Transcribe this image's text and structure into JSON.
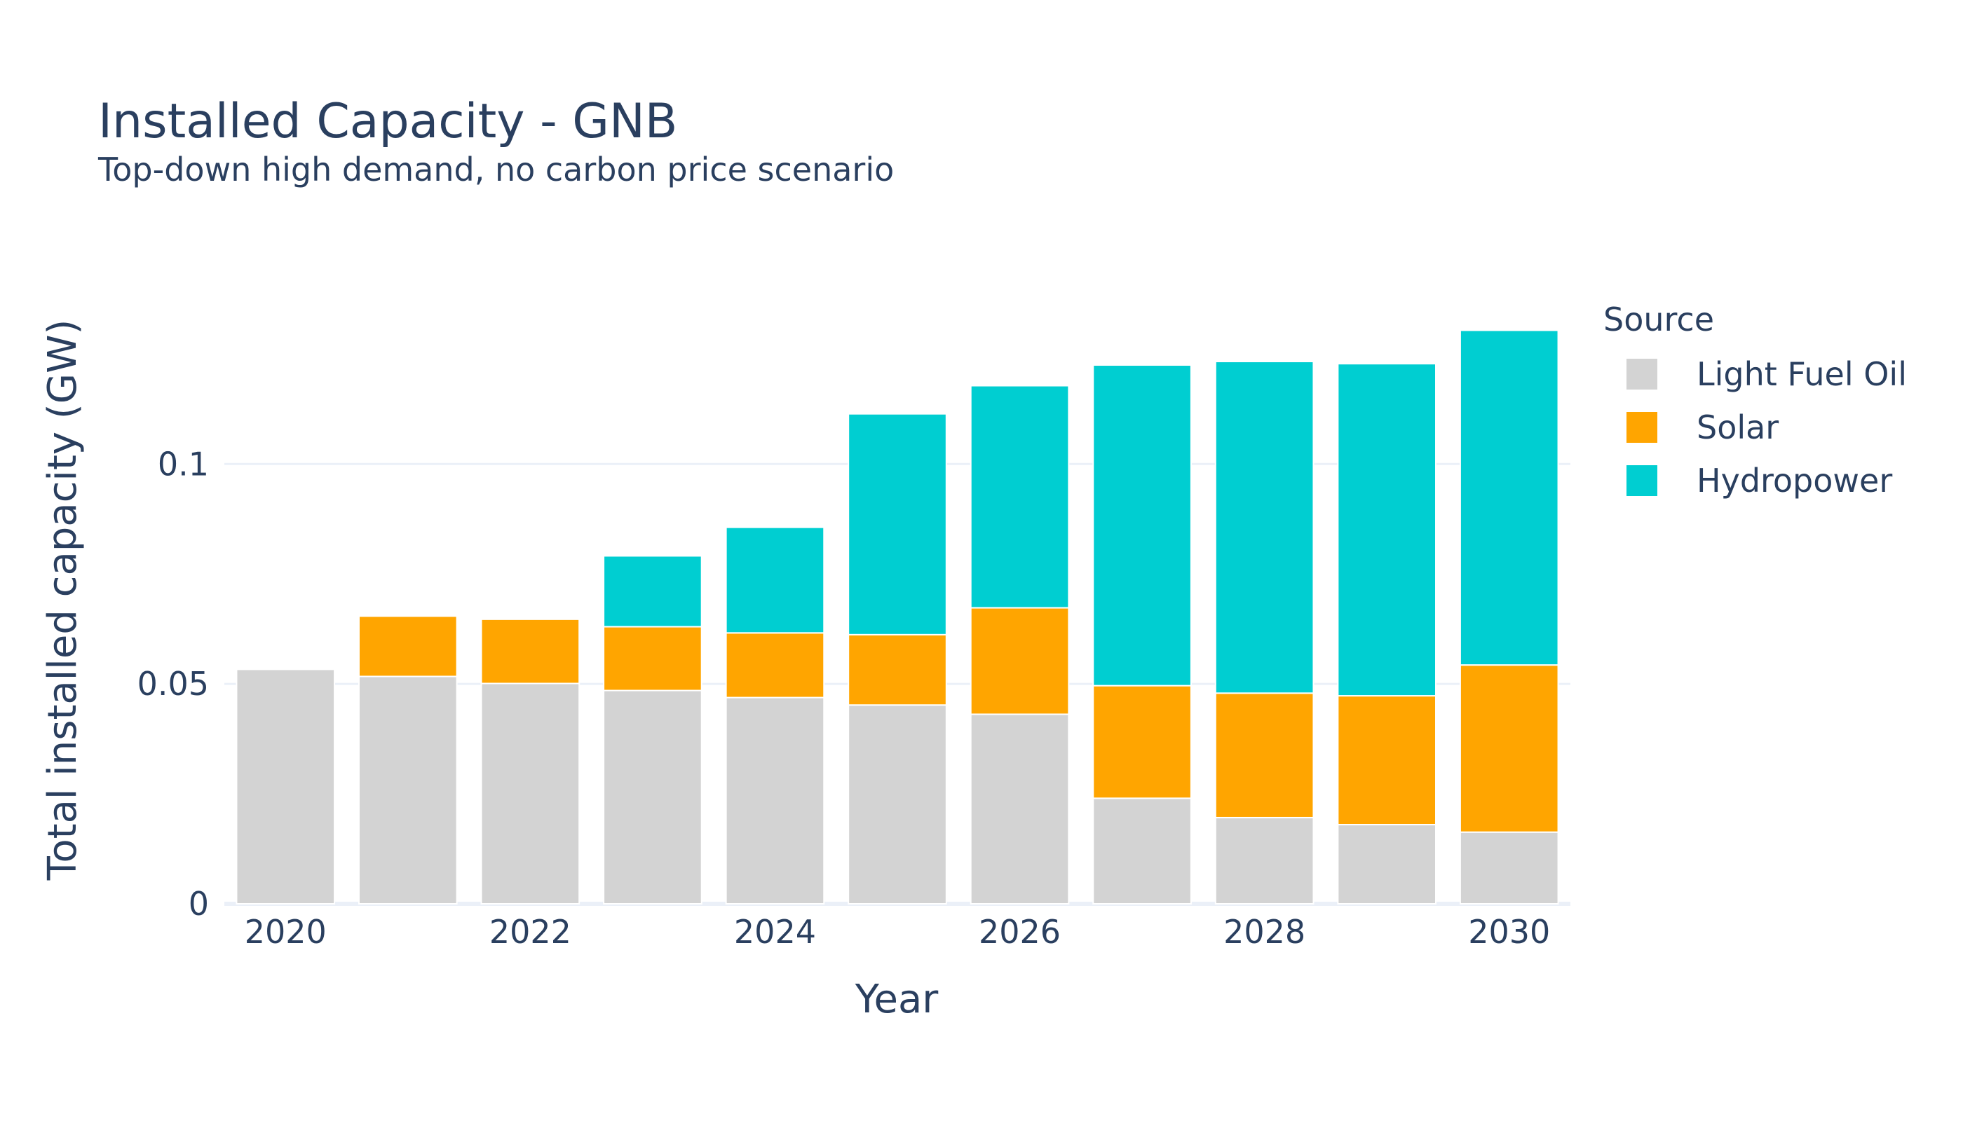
{
  "chart_data": {
    "type": "bar",
    "barmode": "stack",
    "title": "Installed Capacity - GNB",
    "subtitle": "Top-down high demand, no carbon price scenario",
    "xlabel": "Year",
    "ylabel": "Total installed capacity (GW)",
    "categories": [
      2020,
      2021,
      2022,
      2023,
      2024,
      2025,
      2026,
      2027,
      2028,
      2029,
      2030
    ],
    "x_ticks": [
      "2020",
      "2022",
      "2024",
      "2026",
      "2028",
      "2030"
    ],
    "y_ticks": [
      {
        "value": 0,
        "label": "0"
      },
      {
        "value": 0.05,
        "label": "0.05"
      },
      {
        "value": 0.1,
        "label": "0.1"
      }
    ],
    "ylim": [
      0,
      0.137
    ],
    "grid": true,
    "legend": {
      "title": "Source",
      "placement": "right"
    },
    "series": [
      {
        "name": "Light Fuel Oil",
        "color": "#d3d3d3",
        "values": [
          0.0533,
          0.0517,
          0.0501,
          0.0485,
          0.0469,
          0.0452,
          0.0431,
          0.024,
          0.0196,
          0.018,
          0.0163
        ]
      },
      {
        "name": "Solar",
        "color": "#ffa500",
        "values": [
          0,
          0.0137,
          0.0146,
          0.0145,
          0.0147,
          0.016,
          0.0242,
          0.0256,
          0.0283,
          0.0293,
          0.038
        ]
      },
      {
        "name": "Hydropower",
        "color": "#00ced1",
        "values": [
          0,
          0,
          0,
          0.0161,
          0.024,
          0.0502,
          0.0505,
          0.0729,
          0.0754,
          0.0755,
          0.0761
        ]
      }
    ]
  }
}
